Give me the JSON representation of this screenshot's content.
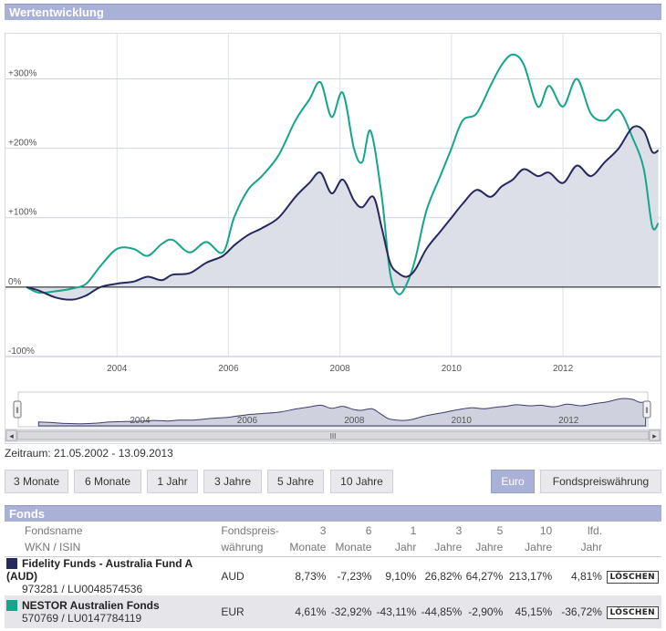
{
  "chart_section": {
    "title": "Wertentwicklung"
  },
  "chart_data": {
    "type": "line",
    "ylim": [
      -100,
      365
    ],
    "xlim": [
      2002.0,
      2013.75
    ],
    "y_ticks": [
      {
        "value": 300,
        "label": "+300%"
      },
      {
        "value": 200,
        "label": "+200%"
      },
      {
        "value": 100,
        "label": "+100%"
      },
      {
        "value": 0,
        "label": "0%"
      },
      {
        "value": -100,
        "label": "-100%"
      }
    ],
    "x_ticks": [
      {
        "value": 2004,
        "label": "2004"
      },
      {
        "value": 2006,
        "label": "2006"
      },
      {
        "value": 2008,
        "label": "2008"
      },
      {
        "value": 2010,
        "label": "2010"
      },
      {
        "value": 2012,
        "label": "2012"
      }
    ],
    "series": [
      {
        "name": "Fidelity Funds - Australia Fund A (AUD)",
        "color": "#26295e",
        "fill": "#d9dbe6",
        "points": [
          [
            2002.38,
            0
          ],
          [
            2002.6,
            -5
          ],
          [
            2002.9,
            -15
          ],
          [
            2003.2,
            -18
          ],
          [
            2003.45,
            -12
          ],
          [
            2003.7,
            0
          ],
          [
            2004.0,
            5
          ],
          [
            2004.3,
            8
          ],
          [
            2004.55,
            15
          ],
          [
            2004.8,
            10
          ],
          [
            2005.0,
            18
          ],
          [
            2005.3,
            20
          ],
          [
            2005.6,
            35
          ],
          [
            2005.9,
            45
          ],
          [
            2006.1,
            60
          ],
          [
            2006.35,
            75
          ],
          [
            2006.6,
            85
          ],
          [
            2006.9,
            100
          ],
          [
            2007.2,
            130
          ],
          [
            2007.45,
            150
          ],
          [
            2007.65,
            165
          ],
          [
            2007.85,
            135
          ],
          [
            2008.05,
            155
          ],
          [
            2008.25,
            125
          ],
          [
            2008.4,
            115
          ],
          [
            2008.6,
            130
          ],
          [
            2008.75,
            85
          ],
          [
            2008.9,
            35
          ],
          [
            2009.05,
            20
          ],
          [
            2009.2,
            15
          ],
          [
            2009.35,
            25
          ],
          [
            2009.55,
            55
          ],
          [
            2009.8,
            80
          ],
          [
            2010.0,
            100
          ],
          [
            2010.2,
            120
          ],
          [
            2010.45,
            140
          ],
          [
            2010.7,
            130
          ],
          [
            2010.9,
            145
          ],
          [
            2011.1,
            155
          ],
          [
            2011.3,
            170
          ],
          [
            2011.55,
            160
          ],
          [
            2011.75,
            165
          ],
          [
            2012.0,
            150
          ],
          [
            2012.25,
            175
          ],
          [
            2012.5,
            160
          ],
          [
            2012.75,
            180
          ],
          [
            2013.0,
            200
          ],
          [
            2013.25,
            230
          ],
          [
            2013.45,
            225
          ],
          [
            2013.6,
            195
          ],
          [
            2013.71,
            197
          ]
        ]
      },
      {
        "name": "NESTOR Australien Fonds",
        "color": "#15a58a",
        "points": [
          [
            2002.38,
            0
          ],
          [
            2002.6,
            -8
          ],
          [
            2002.9,
            -6
          ],
          [
            2003.2,
            -2
          ],
          [
            2003.45,
            5
          ],
          [
            2003.7,
            30
          ],
          [
            2004.0,
            55
          ],
          [
            2004.3,
            55
          ],
          [
            2004.55,
            45
          ],
          [
            2004.8,
            62
          ],
          [
            2005.0,
            68
          ],
          [
            2005.3,
            50
          ],
          [
            2005.6,
            65
          ],
          [
            2005.9,
            50
          ],
          [
            2006.1,
            100
          ],
          [
            2006.35,
            140
          ],
          [
            2006.6,
            160
          ],
          [
            2006.9,
            190
          ],
          [
            2007.2,
            240
          ],
          [
            2007.45,
            270
          ],
          [
            2007.65,
            295
          ],
          [
            2007.85,
            245
          ],
          [
            2008.05,
            280
          ],
          [
            2008.25,
            200
          ],
          [
            2008.4,
            180
          ],
          [
            2008.55,
            225
          ],
          [
            2008.75,
            130
          ],
          [
            2008.9,
            20
          ],
          [
            2009.05,
            -10
          ],
          [
            2009.2,
            5
          ],
          [
            2009.35,
            40
          ],
          [
            2009.55,
            110
          ],
          [
            2009.8,
            160
          ],
          [
            2010.0,
            200
          ],
          [
            2010.2,
            240
          ],
          [
            2010.45,
            250
          ],
          [
            2010.7,
            290
          ],
          [
            2010.9,
            320
          ],
          [
            2011.1,
            335
          ],
          [
            2011.3,
            320
          ],
          [
            2011.55,
            260
          ],
          [
            2011.75,
            290
          ],
          [
            2012.0,
            260
          ],
          [
            2012.25,
            300
          ],
          [
            2012.5,
            250
          ],
          [
            2012.75,
            240
          ],
          [
            2013.0,
            255
          ],
          [
            2013.25,
            215
          ],
          [
            2013.45,
            170
          ],
          [
            2013.6,
            88
          ],
          [
            2013.71,
            92
          ]
        ]
      }
    ]
  },
  "navigator": {
    "labels": [
      "2004",
      "2006",
      "2008",
      "2010",
      "2012"
    ],
    "scroll_center": "III",
    "scroll_left": "◂",
    "scroll_right": "▸",
    "handle": "‖"
  },
  "zeitraum": "Zeitraum: 21.05.2002 - 13.09.2013",
  "period_buttons": [
    "3 Monate",
    "6 Monate",
    "1 Jahr",
    "3 Jahre",
    "5 Jahre",
    "10 Jahre"
  ],
  "currency_buttons": {
    "euro": "Euro",
    "fund": "Fondspreiswährung"
  },
  "funds_section": {
    "title": "Fonds",
    "headers": {
      "name_line1": "Fondsname",
      "name_line2": "WKN / ISIN",
      "cur_line1": "Fondspreis-",
      "cur_line2": "währung",
      "m3_line1": "3",
      "m3_line2": "Monate",
      "m6_line1": "6",
      "m6_line2": "Monate",
      "y1_line1": "1",
      "y1_line2": "Jahr",
      "y3_line1": "3",
      "y3_line2": "Jahre",
      "y5_line1": "5",
      "y5_line2": "Jahre",
      "y10_line1": "10",
      "y10_line2": "Jahre",
      "ytd_line1": "lfd.",
      "ytd_line2": "Jahr"
    },
    "rows": [
      {
        "name": "Fidelity Funds - Australia Fund A (AUD)",
        "ids": "973281 / LU0048574536",
        "currency": "AUD",
        "m3": "8,73%",
        "m6": "-7,23%",
        "y1": "9,10%",
        "y3": "26,82%",
        "y5": "64,27%",
        "y10": "213,17%",
        "ytd": "4,81%",
        "color": "#26295e",
        "delete": "LÖSCHEN"
      },
      {
        "name": "NESTOR Australien Fonds",
        "ids": "570769 / LU0147784119",
        "currency": "EUR",
        "m3": "4,61%",
        "m6": "-32,92%",
        "y1": "-43,11%",
        "y3": "-44,85%",
        "y5": "-2,90%",
        "y10": "45,15%",
        "ytd": "-36,72%",
        "color": "#15a58a",
        "delete": "LÖSCHEN"
      }
    ]
  }
}
